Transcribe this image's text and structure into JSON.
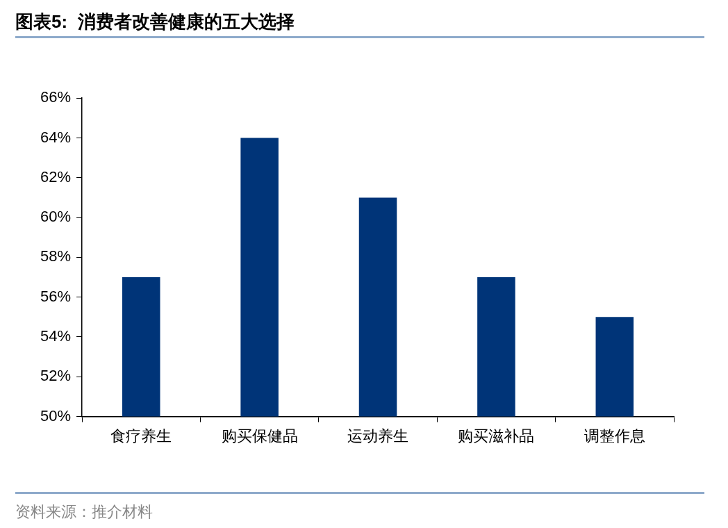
{
  "chart_data": {
    "type": "bar",
    "title": "图表5:  消费者改善健康的五大选择",
    "categories": [
      "食疗养生",
      "购买保健品",
      "运动养生",
      "购买滋补品",
      "调整作息"
    ],
    "values": [
      57,
      64,
      61,
      57,
      55
    ],
    "color": "#003478",
    "ylim": [
      50,
      66
    ],
    "yticks": [
      {
        "value": 50,
        "label": "50%"
      },
      {
        "value": 52,
        "label": "52%"
      },
      {
        "value": 54,
        "label": "54%"
      },
      {
        "value": 56,
        "label": "56%"
      },
      {
        "value": 58,
        "label": "58%"
      },
      {
        "value": 60,
        "label": "60%"
      },
      {
        "value": 62,
        "label": "62%"
      },
      {
        "value": 64,
        "label": "64%"
      },
      {
        "value": 66,
        "label": "66%"
      }
    ],
    "grid": false,
    "legend": false,
    "annotations": [
      "资料来源：推介材料"
    ]
  }
}
